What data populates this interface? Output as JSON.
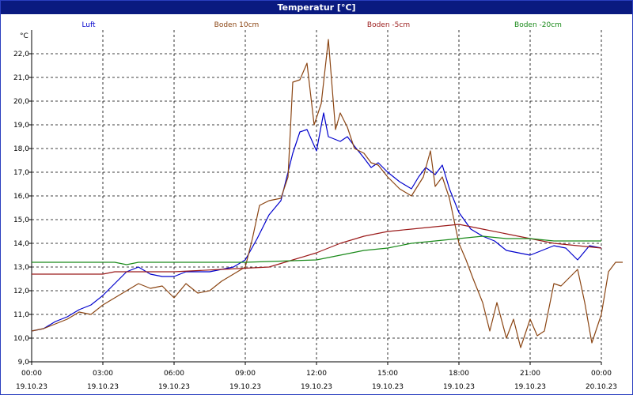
{
  "window": {
    "title": "Temperatur [°C]"
  },
  "chart_data": {
    "type": "line",
    "title": "Temperatur [°C]",
    "ylabel": "°C",
    "ylim": [
      9.0,
      23.0
    ],
    "y_ticks": [
      "9,0",
      "10,0",
      "11,0",
      "12,0",
      "13,0",
      "14,0",
      "15,0",
      "16,0",
      "17,0",
      "18,0",
      "19,0",
      "20,0",
      "21,0",
      "22,0"
    ],
    "x_ticks": [
      {
        "time": "00:00",
        "date": "19.10.23"
      },
      {
        "time": "03:00",
        "date": "19.10.23"
      },
      {
        "time": "06:00",
        "date": "19.10.23"
      },
      {
        "time": "09:00",
        "date": "19.10.23"
      },
      {
        "time": "12:00",
        "date": "19.10.23"
      },
      {
        "time": "15:00",
        "date": "19.10.23"
      },
      {
        "time": "18:00",
        "date": "19.10.23"
      },
      {
        "time": "21:00",
        "date": "19.10.23"
      },
      {
        "time": "00:00",
        "date": "20.10.23"
      }
    ],
    "xlim_hours": [
      0,
      24
    ],
    "grid": true,
    "legend_position": "top",
    "series": [
      {
        "name": "Luft",
        "color": "#0000cc",
        "points": [
          [
            0,
            10.3
          ],
          [
            0.5,
            10.4
          ],
          [
            1,
            10.7
          ],
          [
            1.5,
            10.9
          ],
          [
            2,
            11.2
          ],
          [
            2.5,
            11.4
          ],
          [
            3,
            11.8
          ],
          [
            3.5,
            12.3
          ],
          [
            4,
            12.8
          ],
          [
            4.5,
            13.0
          ],
          [
            5,
            12.7
          ],
          [
            5.5,
            12.6
          ],
          [
            6,
            12.6
          ],
          [
            6.5,
            12.8
          ],
          [
            7,
            12.8
          ],
          [
            7.5,
            12.8
          ],
          [
            8,
            12.9
          ],
          [
            8.5,
            13.0
          ],
          [
            9,
            13.3
          ],
          [
            9.5,
            14.2
          ],
          [
            10,
            15.2
          ],
          [
            10.5,
            15.8
          ],
          [
            11,
            17.8
          ],
          [
            11.3,
            18.7
          ],
          [
            11.6,
            18.8
          ],
          [
            12,
            17.9
          ],
          [
            12.3,
            19.5
          ],
          [
            12.5,
            18.5
          ],
          [
            13,
            18.3
          ],
          [
            13.3,
            18.5
          ],
          [
            13.6,
            18.1
          ],
          [
            14,
            17.6
          ],
          [
            14.3,
            17.2
          ],
          [
            14.6,
            17.4
          ],
          [
            15,
            17.0
          ],
          [
            15.5,
            16.6
          ],
          [
            16,
            16.3
          ],
          [
            16.3,
            16.8
          ],
          [
            16.6,
            17.2
          ],
          [
            17,
            16.9
          ],
          [
            17.3,
            17.3
          ],
          [
            17.6,
            16.3
          ],
          [
            18,
            15.3
          ],
          [
            18.5,
            14.6
          ],
          [
            19,
            14.3
          ],
          [
            19.5,
            14.1
          ],
          [
            20,
            13.7
          ],
          [
            20.5,
            13.6
          ],
          [
            21,
            13.5
          ],
          [
            21.5,
            13.7
          ],
          [
            22,
            13.9
          ],
          [
            22.5,
            13.8
          ],
          [
            23,
            13.3
          ],
          [
            23.5,
            13.9
          ],
          [
            24,
            13.8
          ]
        ]
      },
      {
        "name": "Boden 10cm",
        "color": "#8b4513",
        "points": [
          [
            0,
            10.3
          ],
          [
            0.5,
            10.4
          ],
          [
            1,
            10.6
          ],
          [
            1.5,
            10.8
          ],
          [
            2,
            11.1
          ],
          [
            2.5,
            11.0
          ],
          [
            3,
            11.4
          ],
          [
            3.5,
            11.7
          ],
          [
            4,
            12.0
          ],
          [
            4.5,
            12.3
          ],
          [
            5,
            12.1
          ],
          [
            5.5,
            12.2
          ],
          [
            6,
            11.7
          ],
          [
            6.5,
            12.3
          ],
          [
            7,
            11.9
          ],
          [
            7.5,
            12.0
          ],
          [
            8,
            12.4
          ],
          [
            8.5,
            12.7
          ],
          [
            9,
            13.0
          ],
          [
            9.3,
            14.2
          ],
          [
            9.6,
            15.6
          ],
          [
            10,
            15.8
          ],
          [
            10.5,
            15.9
          ],
          [
            10.8,
            16.8
          ],
          [
            11,
            20.8
          ],
          [
            11.3,
            20.9
          ],
          [
            11.6,
            21.6
          ],
          [
            11.9,
            19.0
          ],
          [
            12.2,
            19.9
          ],
          [
            12.5,
            22.6
          ],
          [
            12.8,
            18.8
          ],
          [
            13,
            19.5
          ],
          [
            13.3,
            18.9
          ],
          [
            13.6,
            18.0
          ],
          [
            14,
            17.8
          ],
          [
            14.3,
            17.4
          ],
          [
            14.6,
            17.3
          ],
          [
            15,
            16.8
          ],
          [
            15.5,
            16.3
          ],
          [
            16,
            16.0
          ],
          [
            16.5,
            16.8
          ],
          [
            16.8,
            17.9
          ],
          [
            17,
            16.4
          ],
          [
            17.3,
            16.8
          ],
          [
            17.6,
            15.9
          ],
          [
            18,
            14.0
          ],
          [
            18.3,
            13.3
          ],
          [
            18.6,
            12.5
          ],
          [
            19,
            11.5
          ],
          [
            19.3,
            10.3
          ],
          [
            19.6,
            11.5
          ],
          [
            20,
            10.0
          ],
          [
            20.3,
            10.8
          ],
          [
            20.6,
            9.6
          ],
          [
            21,
            10.8
          ],
          [
            21.3,
            10.1
          ],
          [
            21.6,
            10.3
          ],
          [
            22,
            12.3
          ],
          [
            22.3,
            12.2
          ],
          [
            22.6,
            12.5
          ],
          [
            23,
            12.9
          ],
          [
            23.3,
            11.5
          ],
          [
            23.6,
            9.8
          ],
          [
            24,
            11.0
          ],
          [
            24.3,
            12.8
          ],
          [
            24.6,
            13.2
          ],
          [
            24.9,
            13.2
          ]
        ]
      },
      {
        "name": "Boden -5cm",
        "color": "#9b1b1b",
        "points": [
          [
            0,
            12.7
          ],
          [
            3,
            12.7
          ],
          [
            3.5,
            12.8
          ],
          [
            6,
            12.8
          ],
          [
            8,
            12.9
          ],
          [
            10,
            13.0
          ],
          [
            11,
            13.3
          ],
          [
            12,
            13.6
          ],
          [
            13,
            14.0
          ],
          [
            14,
            14.3
          ],
          [
            15,
            14.5
          ],
          [
            16,
            14.6
          ],
          [
            17,
            14.7
          ],
          [
            18,
            14.8
          ],
          [
            19,
            14.6
          ],
          [
            20,
            14.4
          ],
          [
            21,
            14.2
          ],
          [
            22,
            14.0
          ],
          [
            23,
            13.9
          ],
          [
            24,
            13.8
          ]
        ]
      },
      {
        "name": "Boden -20cm",
        "color": "#1a8a1a",
        "points": [
          [
            0,
            13.2
          ],
          [
            3.5,
            13.2
          ],
          [
            4,
            13.1
          ],
          [
            4.5,
            13.2
          ],
          [
            8,
            13.2
          ],
          [
            9,
            13.2
          ],
          [
            12,
            13.3
          ],
          [
            13,
            13.5
          ],
          [
            14,
            13.7
          ],
          [
            15,
            13.8
          ],
          [
            16,
            14.0
          ],
          [
            17,
            14.1
          ],
          [
            18,
            14.2
          ],
          [
            19,
            14.3
          ],
          [
            20,
            14.2
          ],
          [
            21,
            14.2
          ],
          [
            22,
            14.1
          ],
          [
            23,
            14.1
          ],
          [
            24,
            14.1
          ]
        ]
      }
    ]
  }
}
